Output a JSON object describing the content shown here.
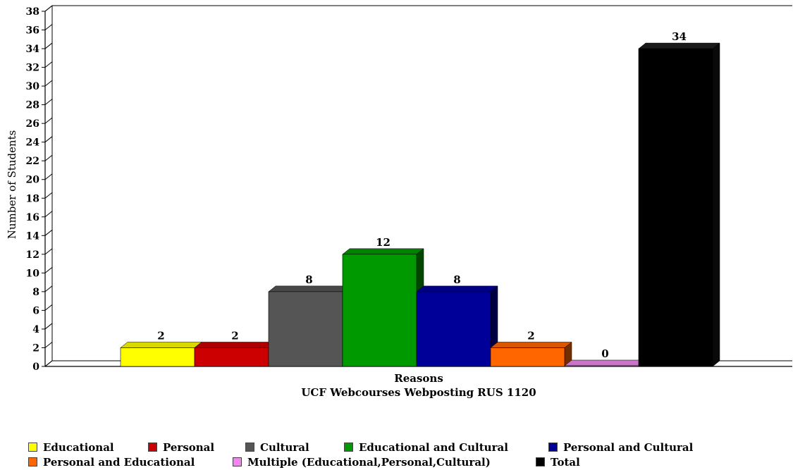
{
  "chart_data": {
    "type": "bar",
    "style": "3d",
    "title": "",
    "xlabel": "Reasons",
    "subtitle": "UCF Webcourses Webposting RUS 1120",
    "ylabel": "Number of Students",
    "ylim": [
      0,
      38
    ],
    "ytick_step": 2,
    "grid": false,
    "legend_position": "bottom",
    "series": [
      {
        "name": "Educational",
        "value": 2,
        "color": "#ffff00"
      },
      {
        "name": "Personal",
        "value": 2,
        "color": "#cc0000"
      },
      {
        "name": "Cultural",
        "value": 8,
        "color": "#555555"
      },
      {
        "name": "Educational and Cultural",
        "value": 12,
        "color": "#009900"
      },
      {
        "name": "Personal and Cultural",
        "value": 8,
        "color": "#000099"
      },
      {
        "name": "Personal and Educational",
        "value": 2,
        "color": "#ff6600"
      },
      {
        "name": "Multiple (Educational,Personal,Cultural)",
        "value": 0,
        "color": "#ee88ee"
      },
      {
        "name": "Total",
        "value": 34,
        "color": "#000000"
      }
    ]
  }
}
